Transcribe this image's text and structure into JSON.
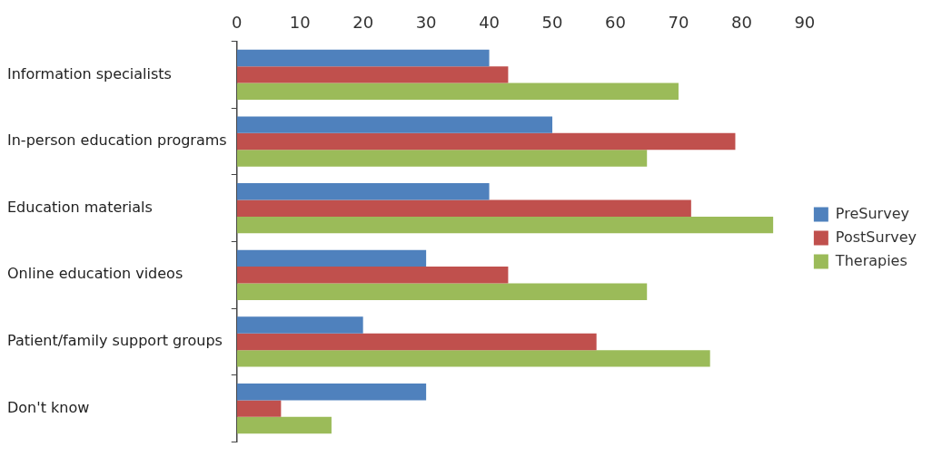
{
  "chart_data": {
    "type": "bar",
    "orientation": "horizontal",
    "categories": [
      "Information specialists",
      "In-person education programs",
      "Education materials",
      "Online education videos",
      "Patient/family support groups",
      "Don't know"
    ],
    "series": [
      {
        "name": "PreSurvey",
        "color": "#4f81bd",
        "values": [
          40,
          50,
          40,
          30,
          20,
          30
        ]
      },
      {
        "name": "PostSurvey",
        "color": "#c0504d",
        "values": [
          43,
          79,
          72,
          43,
          57,
          7
        ]
      },
      {
        "name": "Therapies",
        "color": "#9bbb59",
        "values": [
          70,
          65,
          85,
          65,
          75,
          15
        ]
      }
    ],
    "xlim": [
      0,
      90
    ],
    "xticks": [
      0,
      10,
      20,
      30,
      40,
      50,
      60,
      70,
      80,
      90
    ],
    "grid": false,
    "legend": "right"
  }
}
